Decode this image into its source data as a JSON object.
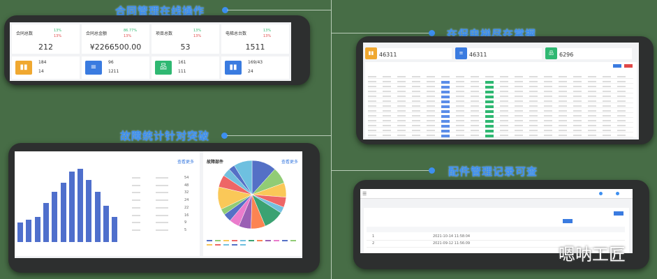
{
  "titles": {
    "contract": "合同管理在线操作",
    "elevator": "在保电梯尽在掌握",
    "fault": "故障统计针对突破",
    "parts": "配件管理记录可查"
  },
  "contract_panel": {
    "cards": [
      {
        "label": "合同总数",
        "value": "212",
        "up": "13%",
        "down": "13%"
      },
      {
        "label": "合同总金额",
        "value": "¥2266500.00",
        "up": "86.77%",
        "down": "13%"
      },
      {
        "label": "项目总数",
        "value": "53",
        "up": "13%",
        "down": "13%"
      },
      {
        "label": "电梯总台数",
        "value": "1511",
        "up": "13%",
        "down": "13%"
      }
    ],
    "stats": [
      {
        "icon": "bar-chart-icon",
        "color": "#f0a830",
        "a": "184",
        "b": "14"
      },
      {
        "icon": "database-icon",
        "color": "#3a7be0",
        "a": "96",
        "b": "1211"
      },
      {
        "icon": "sitemap-icon",
        "color": "#2fb872",
        "a": "161",
        "b": "111"
      },
      {
        "icon": "bar-chart-icon",
        "color": "#3a7be0",
        "a": "169/43",
        "b": "24"
      }
    ]
  },
  "elevator_panel": {
    "stats": [
      {
        "icon": "bar-chart-icon",
        "color": "#f0a830",
        "value": "46311"
      },
      {
        "icon": "database-icon",
        "color": "#3a7be0",
        "value": "46311"
      },
      {
        "icon": "sitemap-icon",
        "color": "#2fb872",
        "value": "6296"
      }
    ]
  },
  "fault_panel": {
    "more": "查看更多",
    "table": {
      "rows": [
        [
          "54"
        ],
        [
          "48"
        ],
        [
          "32"
        ],
        [
          "24"
        ],
        [
          "22"
        ],
        [
          "16"
        ],
        [
          "9"
        ],
        [
          "5"
        ]
      ]
    },
    "pie_title": "故障部件"
  },
  "parts_panel": {
    "rows": [
      [
        "1",
        "2021-10-14 11:58:04"
      ],
      [
        "2",
        "2021-09-12 11:56:09"
      ]
    ]
  },
  "watermark": "嗯呐工匠",
  "chart_data": [
    {
      "type": "bar",
      "values": [
        82,
        93,
        105,
        165,
        213,
        249,
        297,
        309,
        261,
        213,
        153,
        105
      ],
      "color": "#4f6fcc"
    },
    {
      "type": "pie",
      "values": [
        12,
        8,
        7,
        5,
        3,
        10,
        7,
        6,
        5,
        4,
        3,
        11,
        6,
        4,
        3,
        9
      ],
      "colors": [
        "#5470c6",
        "#91cc75",
        "#fac858",
        "#ee6666",
        "#73c0de",
        "#3ba272",
        "#fc8452",
        "#9a60b4",
        "#ea7ccc",
        "#5470c6",
        "#91cc75",
        "#fac858",
        "#ee6666",
        "#73c0de",
        "#5470c6",
        "#6ec0e0"
      ]
    }
  ]
}
